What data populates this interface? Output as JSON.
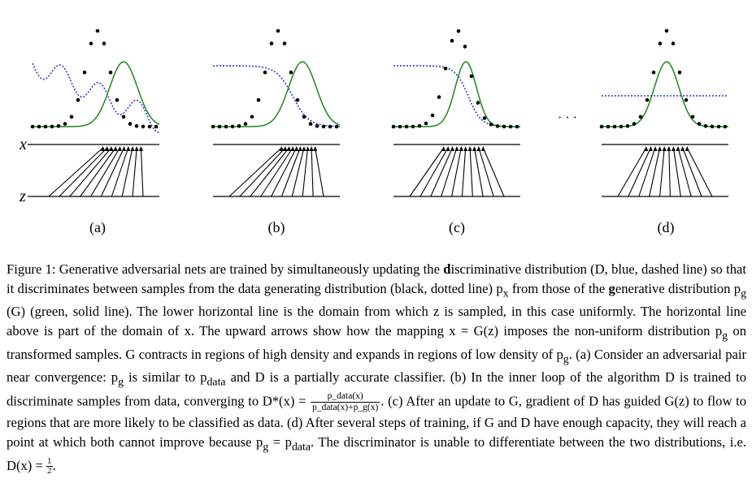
{
  "figure": {
    "axis_labels": {
      "x": "x",
      "z": "z"
    },
    "ellipsis": "· · ·",
    "colors": {
      "data": "#000000",
      "discriminator": "#2233cc",
      "generator": "#1a8a1a"
    },
    "panels": [
      {
        "id": "a",
        "label": "(a)"
      },
      {
        "id": "b",
        "label": "(b)"
      },
      {
        "id": "c",
        "label": "(c)"
      },
      {
        "id": "d",
        "label": "(d)"
      }
    ]
  },
  "caption": {
    "figure_number": "Figure 1:",
    "s1": " Generative adversarial nets are trained by simultaneously updating the ",
    "b1": "d",
    "s2": "iscriminative distribution (D, blue, dashed line) so that it discriminates between samples from the data generating distribution (black, dotted line) p",
    "s2_sub": "x",
    "s3": " from those of the ",
    "b2": "g",
    "s4": "enerative distribution p",
    "s4_sub": "g",
    "s5": " (G) (green, solid line). The lower horizontal line is the domain from which z is sampled, in this case uniformly. The horizontal line above is part of the domain of x. The upward arrows show how the mapping x = G(z) imposes the non-uniform distribution p",
    "s5_sub": "g",
    "s6": " on transformed samples. G contracts in regions of high density and expands in regions of low density of p",
    "s6_sub": "g",
    "s7": ". (a) Consider an adversarial pair near convergence: p",
    "s7_sub": "g",
    "s8": " is similar to p",
    "s8_sub": "data",
    "s9": " and D is a partially accurate classifier. (b) In the inner loop of the algorithm D is trained to discriminate samples from data, converging to D*(x) = ",
    "frac_num": "p_data(x)",
    "frac_den": "p_data(x)+p_g(x)",
    "s10": ". (c) After an update to G, gradient of D has guided G(z) to flow to regions that are more likely to be classified as data. (d) After several steps of training, if G and D have enough capacity, they will reach a point at which both cannot improve because p",
    "s10_sub": "g",
    "s11": " = p",
    "s11_sub": "data",
    "s12": ". The discriminator is unable to differentiate between the two distributions, i.e. D(x) = ",
    "half_num": "1",
    "half_den": "2",
    "s13": "."
  }
}
